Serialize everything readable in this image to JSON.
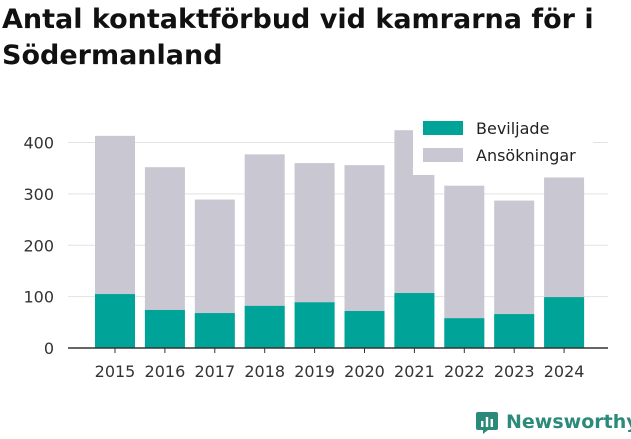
{
  "chart_data": {
    "type": "bar",
    "stacked": false,
    "title": "Antal kontaktförbud vid kamrarna för i Södermanland",
    "categories": [
      "2015",
      "2016",
      "2017",
      "2018",
      "2019",
      "2020",
      "2021",
      "2022",
      "2023",
      "2024"
    ],
    "series": [
      {
        "name": "Ansökningar",
        "color": "#c8c7d2",
        "values": [
          413,
          352,
          289,
          377,
          360,
          356,
          424,
          316,
          287,
          332
        ]
      },
      {
        "name": "Beviljade",
        "color": "#00a398",
        "values": [
          105,
          74,
          68,
          82,
          89,
          72,
          107,
          58,
          66,
          99
        ]
      }
    ],
    "legend": {
      "position": "top-right",
      "entries": [
        "Beviljade",
        "Ansökningar"
      ]
    },
    "yticks": [
      0,
      100,
      200,
      300,
      400
    ],
    "ylim": [
      0,
      440
    ],
    "grid": true,
    "xlabel": "",
    "ylabel": ""
  },
  "brand": {
    "name": "Newsworthy",
    "color": "#2b8a7a",
    "icon": "newsworthy-logo-icon"
  }
}
